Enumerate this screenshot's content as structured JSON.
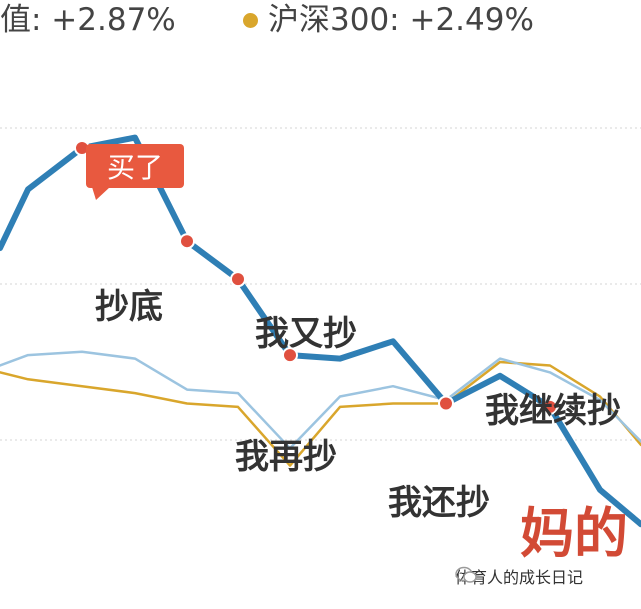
{
  "legend": {
    "item1": "值: +2.87%",
    "item2": "沪深300: +2.49%",
    "item2_color": "#d9a62c"
  },
  "watermark": "体育人的成长日记",
  "colors": {
    "primary": "#2f7fb5",
    "light_blue": "#9cc4e0",
    "gold": "#d9a62c",
    "marker": "#e0503f",
    "tag": "#e8593f",
    "annotation_text": "#333333",
    "final_text": "#d24a35",
    "grid": "#e4e4e4"
  },
  "chart_data": {
    "type": "line",
    "title": "",
    "xlabel": "",
    "ylabel": "",
    "grid": true,
    "x": [
      0,
      1,
      2,
      3,
      4,
      5,
      6,
      7,
      8,
      9,
      10,
      11,
      12,
      13
    ],
    "series": [
      {
        "key": "fund",
        "values": [
          3.0,
          4.7,
          5.9,
          6.2,
          3.2,
          2.1,
          -0.1,
          -0.2,
          0.3,
          -1.5,
          -0.7,
          -1.6,
          -4.0,
          -5.0
        ]
      },
      {
        "key": "light",
        "values": [
          -0.4,
          -0.1,
          0.0,
          -0.2,
          -1.1,
          -1.2,
          -2.8,
          -1.3,
          -1.0,
          -1.4,
          -0.2,
          -0.6,
          -1.4,
          -2.6
        ]
      },
      {
        "key": "hs300",
        "values": [
          -0.6,
          -0.8,
          -1.0,
          -1.2,
          -1.5,
          -1.6,
          -3.3,
          -1.6,
          -1.5,
          -1.5,
          -0.3,
          -0.4,
          -1.3,
          -2.7
        ]
      }
    ],
    "marked_points": [
      {
        "index": 2,
        "label": "买了",
        "style": "tag"
      },
      {
        "index": 4,
        "label": "抄底"
      },
      {
        "index": 5,
        "label": "我又抄"
      },
      {
        "index": 6,
        "label": "我再抄"
      },
      {
        "index": 9,
        "label": "我还抄"
      },
      {
        "index": 11,
        "label": "我继续抄"
      }
    ],
    "final_annotation": "妈的"
  }
}
